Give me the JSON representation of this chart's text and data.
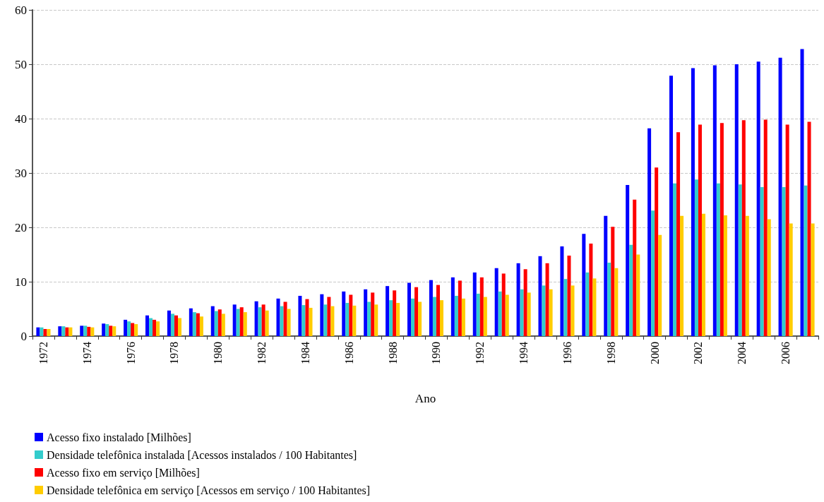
{
  "chart_data": {
    "type": "bar",
    "xlabel": "Ano",
    "categories": [
      "1972",
      null,
      "1974",
      null,
      "1976",
      null,
      "1978",
      null,
      "1980",
      null,
      "1982",
      null,
      "1984",
      null,
      "1986",
      null,
      "1988",
      null,
      "1990",
      null,
      "1992",
      null,
      "1994",
      null,
      "1996",
      null,
      "1998",
      null,
      "2000",
      null,
      "2002",
      null,
      "2004",
      null,
      "2006",
      null
    ],
    "series": [
      {
        "name": "Acesso fixo instalado [Milhões]",
        "color": "#0000ff",
        "values": [
          1.6,
          1.8,
          1.9,
          2.3,
          3.0,
          3.8,
          4.7,
          5.1,
          5.5,
          5.8,
          6.4,
          6.9,
          7.4,
          7.7,
          8.2,
          8.6,
          9.2,
          9.8,
          10.3,
          10.8,
          11.7,
          12.5,
          13.4,
          14.7,
          16.5,
          18.8,
          22.1,
          27.8,
          38.2,
          47.9,
          49.3,
          49.8,
          50.0,
          50.5,
          51.2,
          52.8
        ]
      },
      {
        "name": "Densidade telefônica instalada [Acessos instalados / 100 Habitantes]",
        "color": "#33cccc",
        "values": [
          1.6,
          1.8,
          1.9,
          2.2,
          2.7,
          3.3,
          4.1,
          4.4,
          4.6,
          5.0,
          5.3,
          5.5,
          5.7,
          5.8,
          6.1,
          6.3,
          6.6,
          6.9,
          7.2,
          7.4,
          7.8,
          8.2,
          8.6,
          9.3,
          10.5,
          11.7,
          13.5,
          16.8,
          23.1,
          28.1,
          28.8,
          28.1,
          27.9,
          27.4,
          27.4,
          27.7
        ]
      },
      {
        "name": "Acesso fixo em serviço [Milhões]",
        "color": "#ff0000",
        "values": [
          1.3,
          1.6,
          1.7,
          1.9,
          2.4,
          3.0,
          3.8,
          4.2,
          4.9,
          5.3,
          5.8,
          6.3,
          6.8,
          7.2,
          7.6,
          8.0,
          8.4,
          9.0,
          9.4,
          10.2,
          10.8,
          11.5,
          12.3,
          13.4,
          14.8,
          17.0,
          20.1,
          25.1,
          31.0,
          37.5,
          38.9,
          39.2,
          39.7,
          39.8,
          38.9,
          39.4
        ]
      },
      {
        "name": "Densidade telefônica em serviço [Acessos em serviço / 100 Habitantes]",
        "color": "#ffcc00",
        "values": [
          1.3,
          1.6,
          1.6,
          1.8,
          2.2,
          2.7,
          3.3,
          3.6,
          4.1,
          4.4,
          4.7,
          5.0,
          5.2,
          5.5,
          5.6,
          5.8,
          6.1,
          6.3,
          6.6,
          6.9,
          7.2,
          7.6,
          8.0,
          8.6,
          9.3,
          10.6,
          12.5,
          15.0,
          18.6,
          22.1,
          22.5,
          22.2,
          22.1,
          21.5,
          20.7,
          20.7
        ]
      }
    ],
    "ylim": [
      0,
      60
    ],
    "yticks": [
      0,
      10,
      20,
      30,
      40,
      50,
      60
    ],
    "grid": "y",
    "legend": "bottom left"
  }
}
